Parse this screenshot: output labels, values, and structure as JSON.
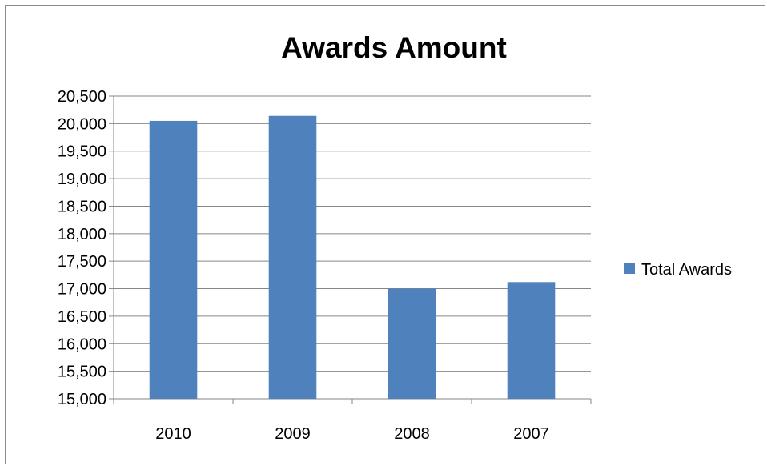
{
  "chart_data": {
    "type": "bar",
    "title": "Awards Amount",
    "xlabel": "",
    "ylabel": "",
    "categories": [
      "2010",
      "2009",
      "2008",
      "2007"
    ],
    "series": [
      {
        "name": "Total Awards",
        "values": [
          20050,
          20140,
          17000,
          17120
        ],
        "color": "#4f81bd"
      }
    ],
    "ylim": [
      15000,
      20500
    ],
    "yticks": [
      15000,
      15500,
      16000,
      16500,
      17000,
      17500,
      18000,
      18500,
      19000,
      19500,
      20000,
      20500
    ],
    "ytick_labels": [
      "15,000",
      "15,500",
      "16,000",
      "16,500",
      "17,000",
      "17,500",
      "18,000",
      "18,500",
      "19,000",
      "19,500",
      "20,000",
      "20,500"
    ],
    "grid": true,
    "legend": "right"
  }
}
